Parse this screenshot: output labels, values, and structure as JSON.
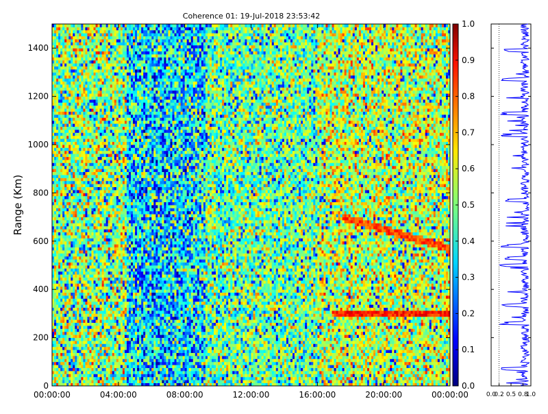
{
  "chart_data": [
    {
      "type": "heatmap",
      "title": "Coherence 01: 19-Jul-2018 23:53:42",
      "xlabel": "",
      "ylabel": "Range (Km)",
      "x_ticks": [
        "00:00:00",
        "04:00:00",
        "08:00:00",
        "12:00:00",
        "16:00:00",
        "20:00:00",
        "00:00:00"
      ],
      "xlim_hours": [
        0,
        24
      ],
      "y_ticks": [
        0,
        200,
        400,
        600,
        800,
        1000,
        1200,
        1400
      ],
      "ylim": [
        0,
        1500
      ],
      "colormap": "jet",
      "colorbar": {
        "ticks": [
          "0.0",
          "0.1",
          "0.2",
          "0.3",
          "0.4",
          "0.5",
          "0.6",
          "0.7",
          "0.8",
          "0.9",
          "1.0"
        ],
        "range": [
          0,
          1
        ]
      },
      "grid": false,
      "bands": [
        {
          "start_h": 0.0,
          "end_h": 4.5,
          "mean": 0.52,
          "spread": 0.22
        },
        {
          "start_h": 4.5,
          "end_h": 9.2,
          "mean": 0.36,
          "spread": 0.24
        },
        {
          "start_h": 9.2,
          "end_h": 16.0,
          "mean": 0.48,
          "spread": 0.2
        },
        {
          "start_h": 16.0,
          "end_h": 24.0,
          "mean": 0.56,
          "spread": 0.2
        }
      ],
      "enhanced_layers": [
        {
          "start_h": 17.0,
          "end_h": 24.0,
          "range_start_km": 300,
          "range_end_km": 300,
          "value": 0.92
        },
        {
          "start_h": 17.5,
          "end_h": 24.0,
          "range_start_km": 570,
          "range_end_km": 700,
          "value": 0.88
        }
      ]
    },
    {
      "type": "line",
      "orientation": "vertical",
      "xlabel": "",
      "ylabel": "",
      "x_ticks": [
        "0.0",
        "0.2",
        "0.5",
        "0.8",
        "1.0"
      ],
      "xlim": [
        0,
        1
      ],
      "ylim": [
        0,
        1500
      ],
      "color": "#0000ff",
      "reference_line_x": 0.2,
      "mean_value": 0.85,
      "dip_ranges_km": [
        70,
        260,
        335,
        500,
        530,
        580,
        770,
        1040,
        1130,
        1270,
        1390
      ]
    }
  ]
}
